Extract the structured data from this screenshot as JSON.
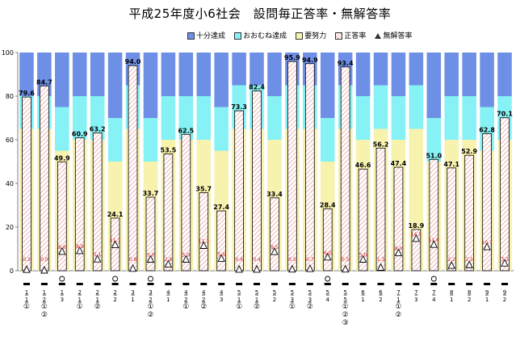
{
  "chart_data": {
    "type": "bar",
    "title": "平成25年度小6社会　設問毎正答率・無解答率",
    "ylim": [
      0,
      100
    ],
    "yticks": [
      "0",
      "20",
      "40",
      "60",
      "80",
      "100"
    ],
    "legend_position": "top",
    "grid": false,
    "categories": [
      {
        "lines": [
          "1",
          "1",
          "①"
        ],
        "circle": false
      },
      {
        "lines": [
          "1",
          "2",
          "①",
          "②"
        ],
        "circle": false
      },
      {
        "lines": [
          "1",
          "3"
        ],
        "circle": true
      },
      {
        "lines": [
          "2",
          "1",
          "①"
        ],
        "circle": false
      },
      {
        "lines": [
          "2",
          "1",
          "②"
        ],
        "circle": false
      },
      {
        "lines": [
          "2",
          "2"
        ],
        "circle": true
      },
      {
        "lines": [
          "3",
          "1"
        ],
        "circle": false
      },
      {
        "lines": [
          "3",
          "2",
          "①",
          "②"
        ],
        "circle": true
      },
      {
        "lines": [
          "4",
          "1"
        ],
        "circle": false
      },
      {
        "lines": [
          "4",
          "2",
          "①"
        ],
        "circle": false
      },
      {
        "lines": [
          "4",
          "2",
          "②"
        ],
        "circle": false
      },
      {
        "lines": [
          "4",
          "3"
        ],
        "circle": false
      },
      {
        "lines": [
          "5",
          "1",
          "①"
        ],
        "circle": false
      },
      {
        "lines": [
          "5",
          "1",
          "②"
        ],
        "circle": false
      },
      {
        "lines": [
          "5",
          "2"
        ],
        "circle": false
      },
      {
        "lines": [
          "5",
          "3",
          "①"
        ],
        "circle": false
      },
      {
        "lines": [
          "5",
          "3",
          "②"
        ],
        "circle": false
      },
      {
        "lines": [
          "5",
          "4"
        ],
        "circle": true
      },
      {
        "lines": [
          "5",
          "5",
          "①",
          "②",
          "③"
        ],
        "circle": false
      },
      {
        "lines": [
          "6",
          "1"
        ],
        "circle": false
      },
      {
        "lines": [
          "6",
          "2"
        ],
        "circle": false
      },
      {
        "lines": [
          "7",
          "1",
          "①",
          "②"
        ],
        "circle": false
      },
      {
        "lines": [
          "7",
          "3"
        ],
        "circle": false
      },
      {
        "lines": [
          "7",
          "4"
        ],
        "circle": true
      },
      {
        "lines": [
          "8",
          "1"
        ],
        "circle": false
      },
      {
        "lines": [
          "8",
          "2"
        ],
        "circle": false
      },
      {
        "lines": [
          "9",
          "1"
        ],
        "circle": false
      },
      {
        "lines": [
          "9",
          "2"
        ],
        "circle": false
      }
    ],
    "threshold_series": [
      {
        "name": "十分達成",
        "color": "#6E8FE6"
      },
      {
        "name": "おおむね達成",
        "color": "#86F2F5"
      },
      {
        "name": "要努力",
        "color": "#F7F2AE"
      }
    ],
    "threshold_values": [
      {
        "reasonable": 80,
        "effort": 65
      },
      {
        "reasonable": 80,
        "effort": 65
      },
      {
        "reasonable": 75,
        "effort": 55
      },
      {
        "reasonable": 80,
        "effort": 60
      },
      {
        "reasonable": 80,
        "effort": 60
      },
      {
        "reasonable": 70,
        "effort": 50
      },
      {
        "reasonable": 85,
        "effort": 65
      },
      {
        "reasonable": 70,
        "effort": 50
      },
      {
        "reasonable": 80,
        "effort": 60
      },
      {
        "reasonable": 80,
        "effort": 60
      },
      {
        "reasonable": 80,
        "effort": 60
      },
      {
        "reasonable": 75,
        "effort": 55
      },
      {
        "reasonable": 85,
        "effort": 65
      },
      {
        "reasonable": 85,
        "effort": 65
      },
      {
        "reasonable": 80,
        "effort": 60
      },
      {
        "reasonable": 85,
        "effort": 65
      },
      {
        "reasonable": 85,
        "effort": 65
      },
      {
        "reasonable": 70,
        "effort": 50
      },
      {
        "reasonable": 85,
        "effort": 65
      },
      {
        "reasonable": 80,
        "effort": 60
      },
      {
        "reasonable": 85,
        "effort": 65
      },
      {
        "reasonable": 80,
        "effort": 60
      },
      {
        "reasonable": 85,
        "effort": 65
      },
      {
        "reasonable": 70,
        "effort": 50
      },
      {
        "reasonable": 80,
        "effort": 60
      },
      {
        "reasonable": 80,
        "effort": 60
      },
      {
        "reasonable": 75,
        "effort": 55
      },
      {
        "reasonable": 80,
        "effort": 60
      }
    ],
    "series": [
      {
        "name": "正答率",
        "color": "#E8A0A0",
        "values": [
          79.6,
          84.7,
          49.9,
          60.9,
          63.2,
          24.1,
          94.0,
          33.7,
          53.5,
          62.5,
          35.7,
          27.4,
          73.3,
          82.4,
          33.4,
          95.9,
          94.9,
          28.4,
          93.4,
          46.6,
          56.2,
          47.4,
          18.9,
          51.0,
          47.1,
          52.9,
          62.8,
          70.1
        ]
      },
      {
        "name": "無解答率",
        "marker": "triangle",
        "values": [
          0.3,
          0.0,
          8.6,
          8.9,
          5.1,
          11.7,
          0.8,
          5.0,
          2.8,
          5.0,
          11.3,
          5.4,
          0.4,
          0.4,
          8.5,
          0.5,
          0.7,
          6.0,
          0.5,
          5.0,
          1.3,
          8.0,
          14.5,
          11.8,
          2.2,
          2.5,
          10.7,
          3.2
        ]
      }
    ]
  }
}
